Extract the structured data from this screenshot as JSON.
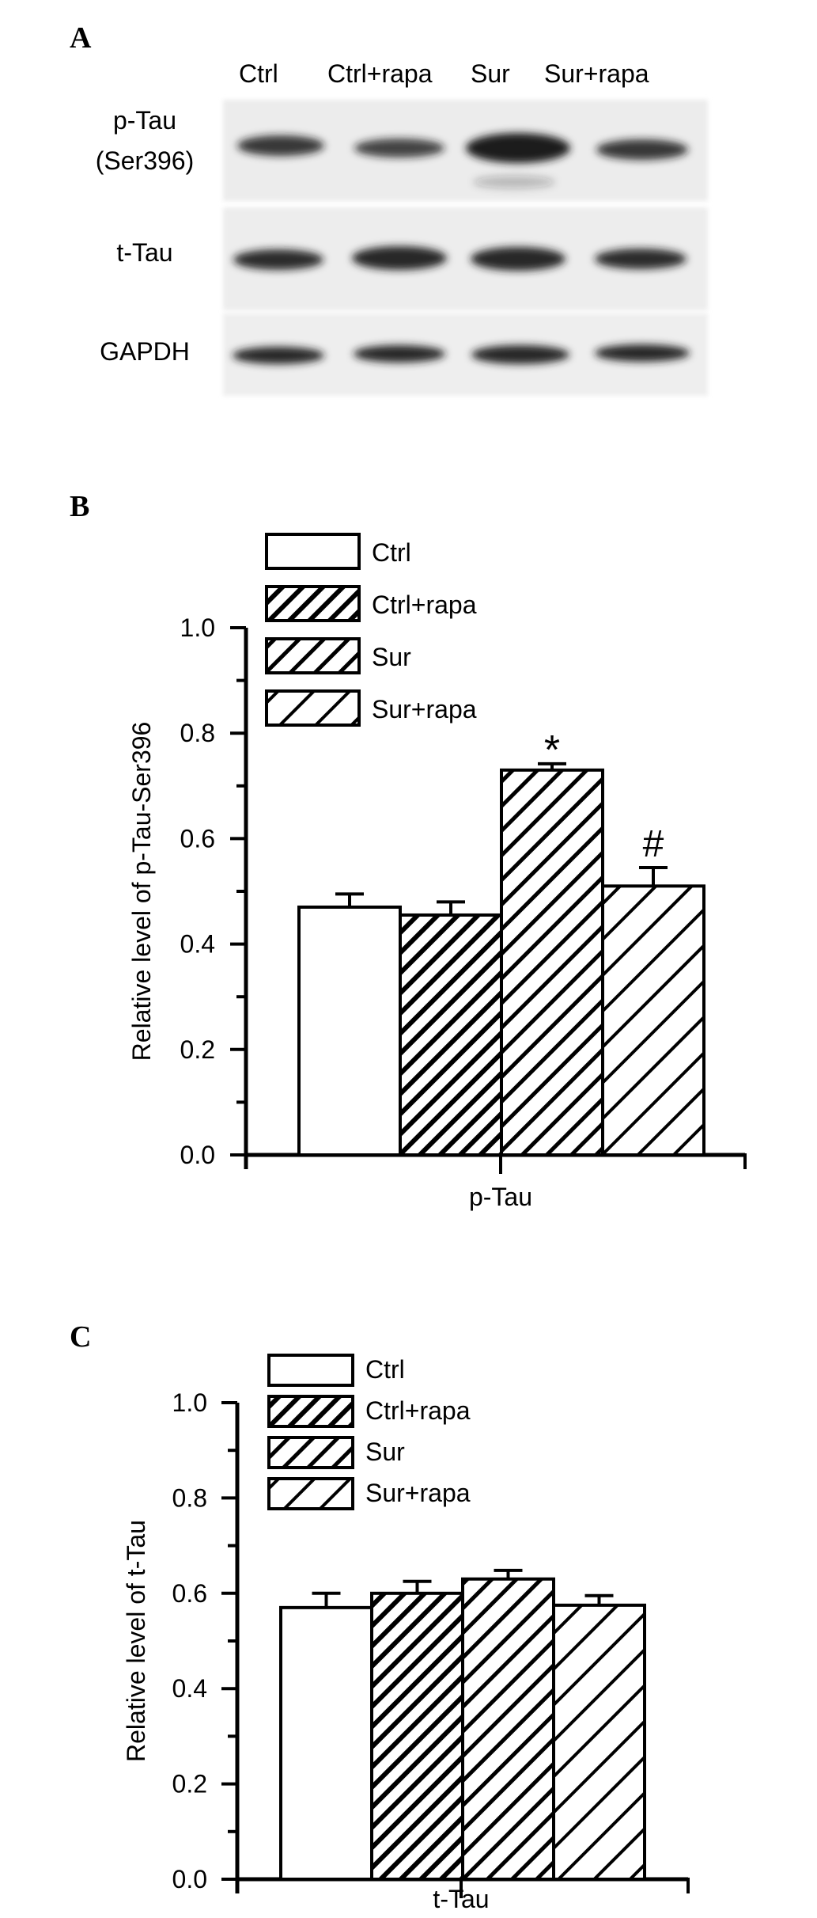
{
  "panel_a": {
    "label": "A",
    "lanes": [
      "Ctrl",
      "Ctrl+rapa",
      "Sur",
      "Sur+rapa"
    ],
    "rows": [
      {
        "label": "p-Tau",
        "sublabel": "(Ser396)"
      },
      {
        "label": "t-Tau",
        "sublabel": ""
      },
      {
        "label": "GAPDH",
        "sublabel": ""
      }
    ]
  },
  "chart_data": [
    {
      "panel": "B",
      "type": "bar",
      "categories": [
        "p-Tau"
      ],
      "xlabel": "p-Tau",
      "ylabel": "Relative level of p-Tau-Ser396",
      "ylim": [
        0,
        1.0
      ],
      "yticks": [
        "0.0",
        "0.2",
        "0.4",
        "0.6",
        "0.8",
        "1.0"
      ],
      "legend_position": "top-left",
      "grid": false,
      "series": [
        {
          "name": "Ctrl",
          "values": [
            0.47
          ],
          "error": [
            0.025
          ],
          "annotation": "",
          "fill": "open"
        },
        {
          "name": "Ctrl+rapa",
          "values": [
            0.455
          ],
          "error": [
            0.025
          ],
          "annotation": "",
          "fill": "dense-hatch"
        },
        {
          "name": "Sur",
          "values": [
            0.73
          ],
          "error": [
            0.012
          ],
          "annotation": "*",
          "fill": "hatch"
        },
        {
          "name": "Sur+rapa",
          "values": [
            0.51
          ],
          "error": [
            0.035
          ],
          "annotation": "#",
          "fill": "wide-hatch"
        }
      ]
    },
    {
      "panel": "C",
      "type": "bar",
      "categories": [
        "t-Tau"
      ],
      "xlabel": "t-Tau",
      "ylabel": "Relative level of t-Tau",
      "ylim": [
        0,
        1.0
      ],
      "yticks": [
        "0.0",
        "0.2",
        "0.4",
        "0.6",
        "0.8",
        "1.0"
      ],
      "legend_position": "top-left",
      "grid": false,
      "series": [
        {
          "name": "Ctrl",
          "values": [
            0.57
          ],
          "error": [
            0.03
          ],
          "annotation": "",
          "fill": "open"
        },
        {
          "name": "Ctrl+rapa",
          "values": [
            0.6
          ],
          "error": [
            0.025
          ],
          "annotation": "",
          "fill": "dense-hatch"
        },
        {
          "name": "Sur",
          "values": [
            0.63
          ],
          "error": [
            0.018
          ],
          "annotation": "",
          "fill": "hatch"
        },
        {
          "name": "Sur+rapa",
          "values": [
            0.575
          ],
          "error": [
            0.02
          ],
          "annotation": "",
          "fill": "wide-hatch"
        }
      ]
    }
  ],
  "colors": {
    "ink": "#000000",
    "bar_fill": "#ffffff",
    "blot_bg": "#ececec",
    "band": "#1a1a1a"
  }
}
